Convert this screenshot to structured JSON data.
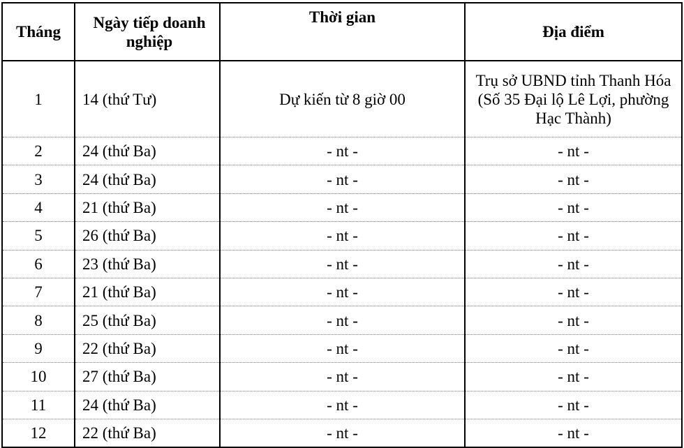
{
  "table": {
    "headers": [
      "Tháng",
      "Ngày tiếp doanh nghiệp",
      "Thời gian",
      "Địa điểm"
    ],
    "rows": [
      [
        "1",
        "14 (thứ Tư)",
        "Dự kiến từ 8 giờ 00",
        "Trụ sở UBND tỉnh Thanh Hóa (Số 35 Đại lộ Lê Lợi, phường Hạc Thành)"
      ],
      [
        "2",
        "24 (thứ Ba)",
        "- nt -",
        "- nt -"
      ],
      [
        "3",
        "24 (thứ Ba)",
        "- nt -",
        "- nt -"
      ],
      [
        "4",
        "21 (thứ Ba)",
        "- nt -",
        "- nt -"
      ],
      [
        "5",
        "26 (thứ Ba)",
        "- nt -",
        "- nt -"
      ],
      [
        "6",
        "23 (thứ Ba)",
        "- nt -",
        "- nt -"
      ],
      [
        "7",
        "21 (thứ Ba)",
        "- nt -",
        "- nt -"
      ],
      [
        "8",
        "25 (thứ Ba)",
        "- nt -",
        "- nt -"
      ],
      [
        "9",
        "22 (thứ Ba)",
        "- nt -",
        "- nt -"
      ],
      [
        "10",
        "27 (thứ Ba)",
        "- nt -",
        "- nt -"
      ],
      [
        "11",
        "24 (thứ Ba)",
        "- nt -",
        "- nt -"
      ],
      [
        "12",
        "22 (thứ Ba)",
        "- nt -",
        "- nt -"
      ]
    ]
  }
}
